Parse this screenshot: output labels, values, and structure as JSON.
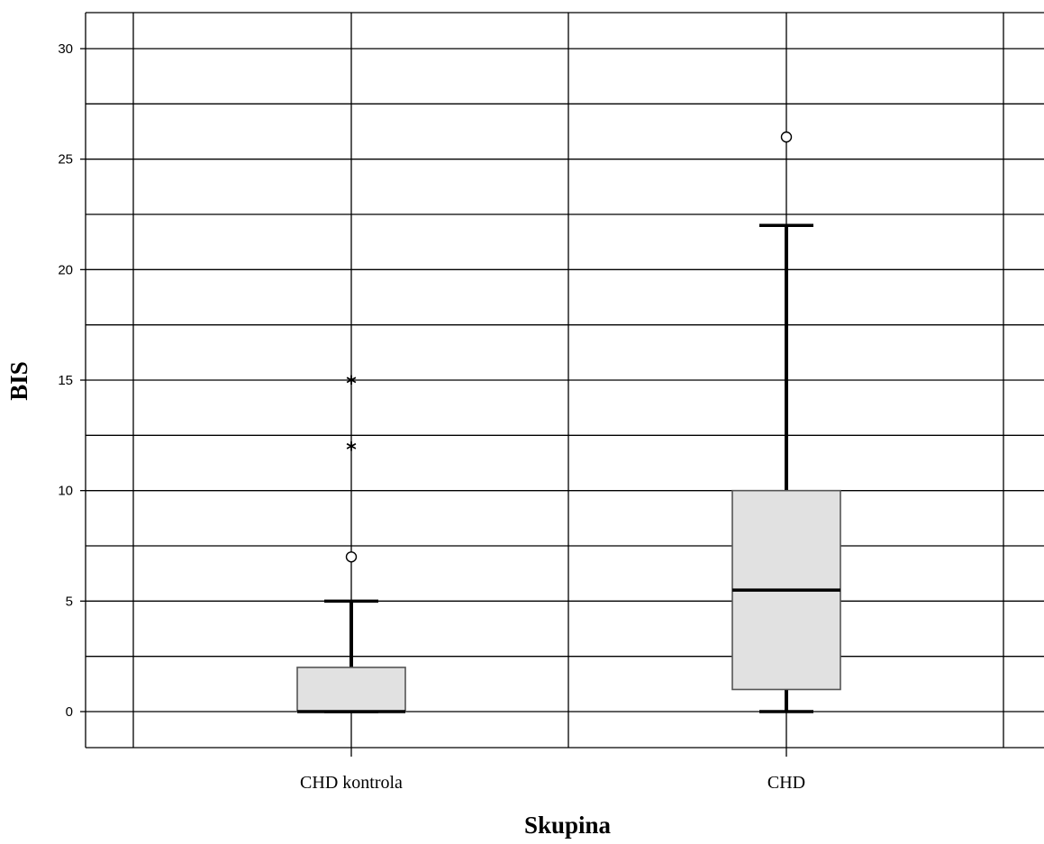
{
  "chart_data": {
    "type": "boxplot",
    "title": "",
    "xlabel": "Skupina",
    "ylabel": "BIS",
    "ylim": [
      -1.6,
      31.6
    ],
    "yticks": [
      0,
      5,
      10,
      15,
      20,
      25,
      30
    ],
    "grid": true,
    "categories": [
      "CHD kontrola",
      "CHD"
    ],
    "boxes": [
      {
        "category": "CHD kontrola",
        "whisker_low": 0,
        "q1": 0,
        "median": 0,
        "q3": 2,
        "whisker_high": 5,
        "outliers": [
          7
        ],
        "extremes": [
          12,
          15
        ]
      },
      {
        "category": "CHD",
        "whisker_low": 0,
        "q1": 1,
        "median": 5.5,
        "q3": 10,
        "whisker_high": 22,
        "outliers": [
          26
        ],
        "extremes": []
      }
    ],
    "colors": {
      "box_fill": "#e1e1e1",
      "line": "#000000",
      "grid": "#000000"
    }
  }
}
